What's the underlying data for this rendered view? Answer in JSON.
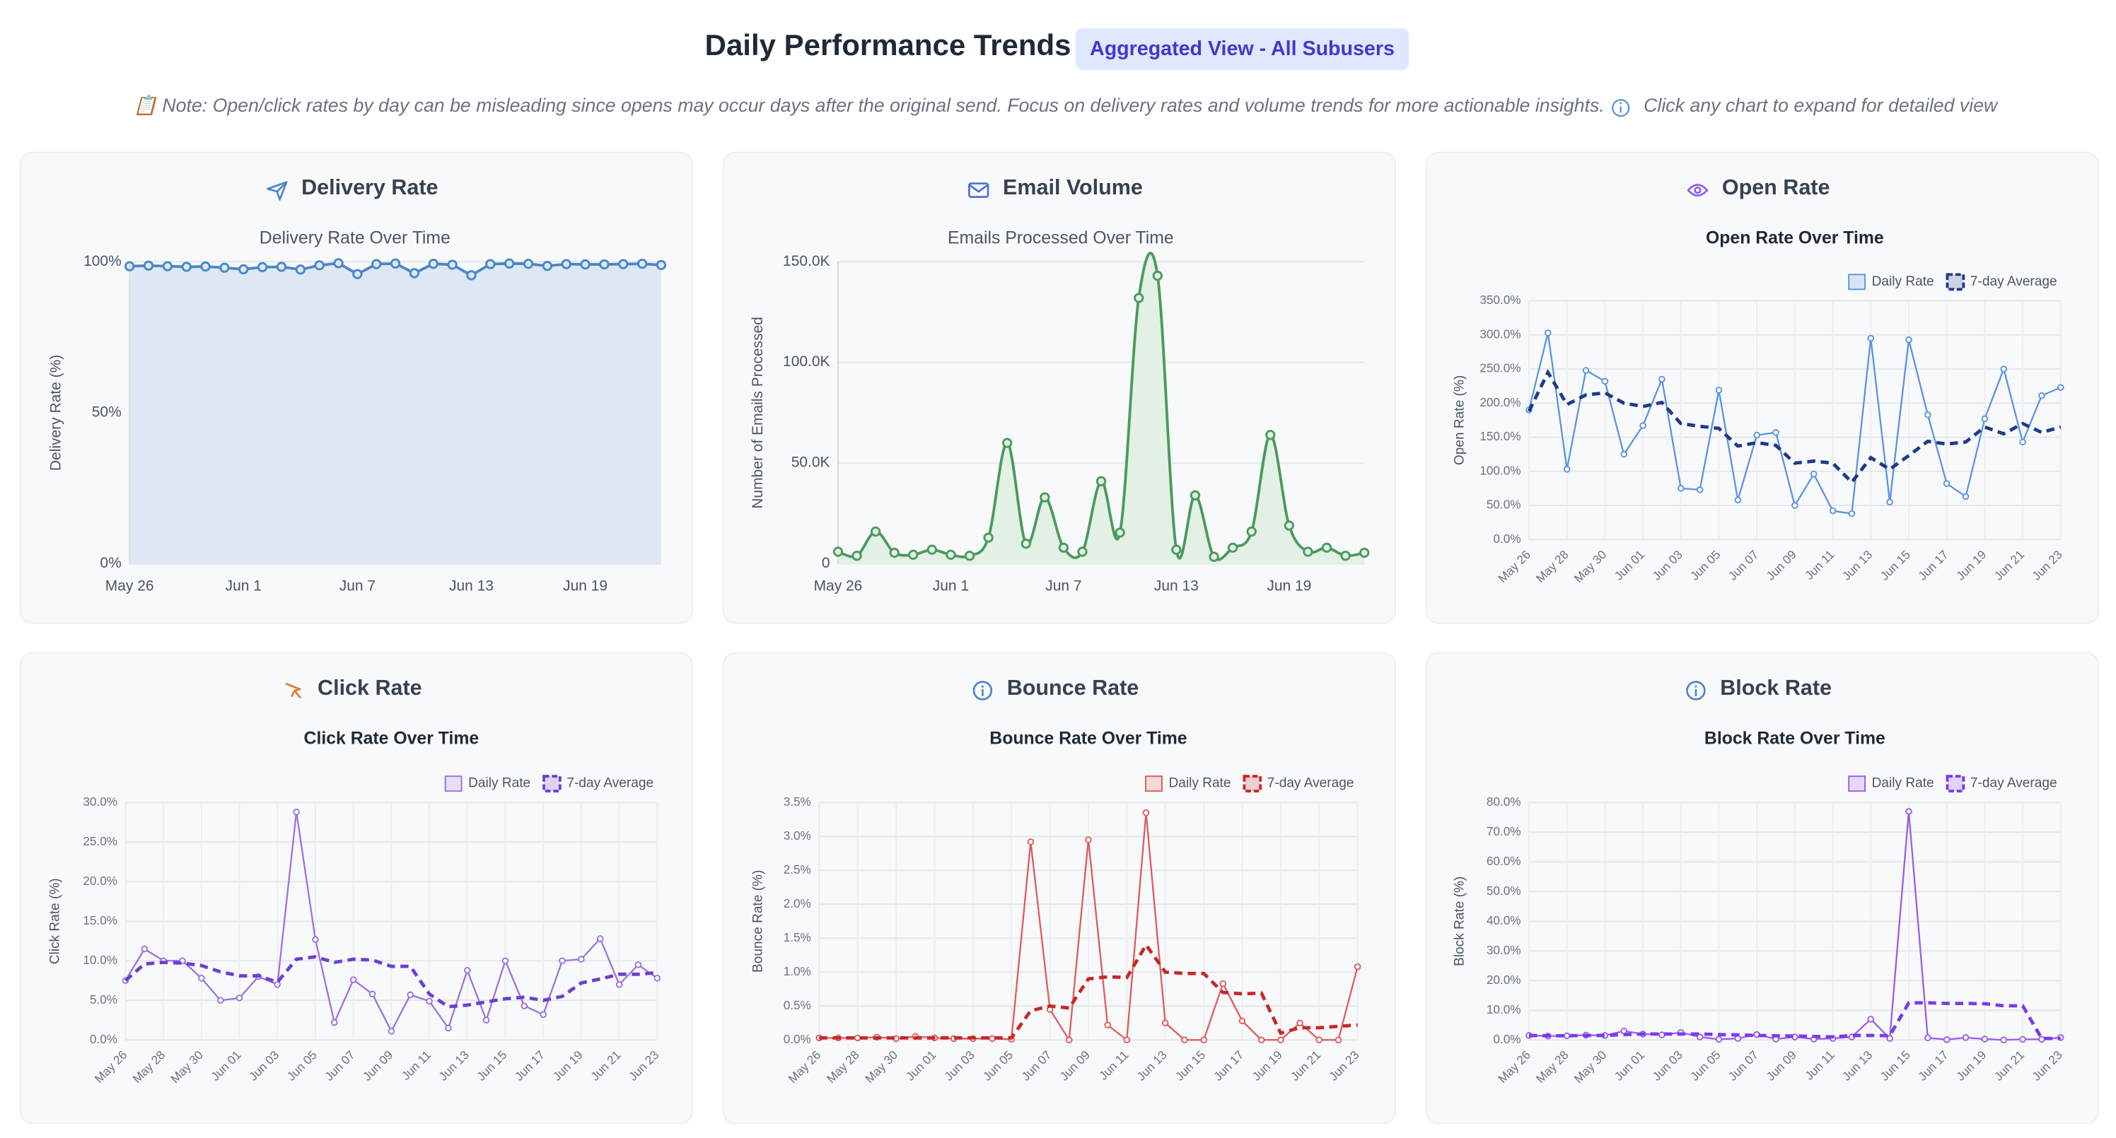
{
  "header": {
    "title": "Daily Performance Trends",
    "badge": "Aggregated View - All Subusers",
    "note": "📋 Note: Open/click rates by day can be misleading since opens may occur days after the original send. Focus on delivery rates and volume trends for more actionable insights.",
    "hint": "Click any chart to expand for detailed view"
  },
  "chart_data": [
    {
      "type": "area",
      "panel_title": "Delivery Rate",
      "title": "Delivery Rate Over Time",
      "ylabel": "Delivery Rate (%)",
      "categories": [
        "May 26",
        null,
        null,
        null,
        null,
        null,
        "Jun 1",
        null,
        null,
        null,
        null,
        null,
        "Jun 7",
        null,
        null,
        null,
        null,
        null,
        "Jun 13",
        null,
        null,
        null,
        null,
        null,
        "Jun 19",
        null,
        null,
        null,
        null
      ],
      "ylim": [
        0,
        100
      ],
      "yticks": [
        {
          "value": 0,
          "label": "0%"
        },
        {
          "value": 50,
          "label": "50%"
        },
        {
          "value": 100,
          "label": "100%"
        }
      ],
      "grid": true,
      "smooth": false,
      "series": [
        {
          "color": "#4a86c8",
          "fill": "#dde8f4",
          "values": [
            98.5,
            98.7,
            98.5,
            98.3,
            98.4,
            98.0,
            97.5,
            98.2,
            98.3,
            97.4,
            98.8,
            99.5,
            95.9,
            99.2,
            99.4,
            96.2,
            99.3,
            99.0,
            95.5,
            99.2,
            99.4,
            99.3,
            98.6,
            99.2,
            99.1,
            99.1,
            99.2,
            99.3,
            98.9
          ]
        }
      ]
    },
    {
      "type": "area",
      "panel_title": "Email Volume",
      "title": "Emails Processed Over Time",
      "ylabel": "Number of Emails Processed",
      "categories": [
        "May 26",
        null,
        null,
        null,
        null,
        null,
        "Jun 1",
        null,
        null,
        null,
        null,
        null,
        "Jun 7",
        null,
        null,
        null,
        null,
        null,
        "Jun 13",
        null,
        null,
        null,
        null,
        null,
        "Jun 19",
        null,
        null,
        null,
        null
      ],
      "ylim": [
        0,
        150000
      ],
      "yticks": [
        0,
        {
          "value": 50000,
          "label": "50.0K"
        },
        {
          "value": 100000,
          "label": "100.0K"
        },
        {
          "value": 150000,
          "label": "150.0K"
        }
      ],
      "grid": true,
      "smooth": true,
      "series": [
        {
          "color": "#4a9a5c",
          "fill": "#e2f0e5",
          "values": [
            6000,
            4000,
            16000,
            5500,
            4500,
            7000,
            4500,
            4000,
            13000,
            60000,
            10000,
            33000,
            8000,
            6000,
            41000,
            15500,
            132000,
            143000,
            7000,
            34000,
            3500,
            8000,
            16000,
            64000,
            19000,
            6000,
            8000,
            4000,
            5500
          ]
        }
      ]
    },
    {
      "type": "line",
      "panel_title": "Open Rate",
      "title": "Open Rate Over Time",
      "ylabel": "Open Rate (%)",
      "categories": [
        "May 26",
        null,
        "May 28",
        null,
        "May 30",
        null,
        "Jun 01",
        null,
        "Jun 03",
        null,
        "Jun 05",
        null,
        "Jun 07",
        null,
        "Jun 09",
        null,
        "Jun 11",
        null,
        "Jun 13",
        null,
        "Jun 15",
        null,
        "Jun 17",
        null,
        "Jun 19",
        null,
        "Jun 21",
        null,
        "Jun 23"
      ],
      "ylim": [
        0,
        350
      ],
      "yticks": [
        {
          "value": 0,
          "label": "0.0%"
        },
        {
          "value": 50,
          "label": "50.0%"
        },
        {
          "value": 100,
          "label": "100.0%"
        },
        {
          "value": 150,
          "label": "150.0%"
        },
        {
          "value": 200,
          "label": "200.0%"
        },
        {
          "value": 250,
          "label": "250.0%"
        },
        {
          "value": 300,
          "label": "300.0%"
        },
        {
          "value": 350,
          "label": "350.0%"
        }
      ],
      "grid": true,
      "xgrid": true,
      "legend": "top-right",
      "series": [
        {
          "name": "Daily Rate",
          "color": "#5b93e0",
          "dashed": false,
          "values": [
            190,
            303,
            103,
            248,
            232,
            125,
            167,
            235,
            75,
            73,
            219,
            58,
            153,
            157,
            50,
            96,
            42,
            38,
            295,
            55,
            293,
            183,
            82,
            63,
            177,
            250,
            143,
            211,
            223
          ]
        },
        {
          "name": "7-day Average",
          "color": "#1e3a8a",
          "dashed": true,
          "values": [
            188,
            245,
            198,
            212,
            215,
            200,
            195,
            201,
            170,
            166,
            163,
            137,
            142,
            138,
            112,
            115,
            112,
            84,
            120,
            103,
            123,
            144,
            140,
            143,
            165,
            155,
            170,
            157,
            165
          ]
        }
      ]
    },
    {
      "type": "line",
      "panel_title": "Click Rate",
      "title": "Click Rate Over Time",
      "ylabel": "Click Rate (%)",
      "categories": [
        "May 26",
        null,
        "May 28",
        null,
        "May 30",
        null,
        "Jun 01",
        null,
        "Jun 03",
        null,
        "Jun 05",
        null,
        "Jun 07",
        null,
        "Jun 09",
        null,
        "Jun 11",
        null,
        "Jun 13",
        null,
        "Jun 15",
        null,
        "Jun 17",
        null,
        "Jun 19",
        null,
        "Jun 21",
        null,
        "Jun 23"
      ],
      "ylim": [
        0,
        30
      ],
      "yticks": [
        {
          "value": 0,
          "label": "0.0%"
        },
        {
          "value": 5,
          "label": "5.0%"
        },
        {
          "value": 10,
          "label": "10.0%"
        },
        {
          "value": 15,
          "label": "15.0%"
        },
        {
          "value": 20,
          "label": "20.0%"
        },
        {
          "value": 25,
          "label": "25.0%"
        },
        {
          "value": 30,
          "label": "30.0%"
        }
      ],
      "grid": true,
      "xgrid": true,
      "legend": "top-right",
      "series": [
        {
          "name": "Daily Rate",
          "color": "#9b72e0",
          "dashed": false,
          "values": [
            7.5,
            11.5,
            10,
            10,
            7.8,
            5,
            5.3,
            8,
            7,
            28.8,
            12.7,
            2.2,
            7.6,
            5.8,
            1.1,
            5.7,
            4.9,
            1.5,
            8.8,
            2.5,
            10,
            4.3,
            3.2,
            10,
            10.2,
            12.8,
            7,
            9.5,
            7.8
          ]
        },
        {
          "name": "7-day Average",
          "color": "#6d3fd0",
          "dashed": true,
          "values": [
            7.5,
            9.6,
            9.8,
            9.7,
            9.4,
            8.6,
            8.1,
            8.1,
            7.3,
            10.2,
            10.5,
            9.8,
            10.2,
            10.1,
            9.3,
            9.3,
            5.8,
            4.2,
            4.4,
            4.8,
            5.2,
            5.4,
            5,
            5.5,
            7.2,
            7.7,
            8.3,
            8.3,
            8.5
          ]
        }
      ]
    },
    {
      "type": "line",
      "panel_title": "Bounce Rate",
      "title": "Bounce Rate Over Time",
      "ylabel": "Bounce Rate (%)",
      "categories": [
        "May 26",
        null,
        "May 28",
        null,
        "May 30",
        null,
        "Jun 01",
        null,
        "Jun 03",
        null,
        "Jun 05",
        null,
        "Jun 07",
        null,
        "Jun 09",
        null,
        "Jun 11",
        null,
        "Jun 13",
        null,
        "Jun 15",
        null,
        "Jun 17",
        null,
        "Jun 19",
        null,
        "Jun 21",
        null,
        "Jun 23"
      ],
      "ylim": [
        0,
        3.5
      ],
      "yticks": [
        {
          "value": 0,
          "label": "0.0%"
        },
        {
          "value": 0.5,
          "label": "0.5%"
        },
        {
          "value": 1,
          "label": "1.0%"
        },
        {
          "value": 1.5,
          "label": "1.5%"
        },
        {
          "value": 2,
          "label": "2.0%"
        },
        {
          "value": 2.5,
          "label": "2.5%"
        },
        {
          "value": 3,
          "label": "3.0%"
        },
        {
          "value": 3.5,
          "label": "3.5%"
        }
      ],
      "grid": true,
      "xgrid": true,
      "legend": "top-right",
      "series": [
        {
          "name": "Daily Rate",
          "color": "#e05a5a",
          "dashed": false,
          "values": [
            0.03,
            0.03,
            0.03,
            0.04,
            0.02,
            0.05,
            0.03,
            0.02,
            0.02,
            0.02,
            0.01,
            2.92,
            0.45,
            0,
            2.95,
            0.22,
            0,
            3.35,
            0.25,
            0,
            0,
            0.83,
            0.28,
            0,
            0,
            0.25,
            0,
            0,
            1.08
          ]
        },
        {
          "name": "7-day Average",
          "color": "#c82828",
          "dashed": true,
          "values": [
            0.03,
            0.03,
            0.03,
            0.03,
            0.03,
            0.03,
            0.03,
            0.03,
            0.03,
            0.03,
            0.03,
            0.43,
            0.5,
            0.47,
            0.9,
            0.93,
            0.92,
            1.4,
            1.0,
            0.98,
            0.98,
            0.7,
            0.68,
            0.69,
            0.1,
            0.18,
            0.18,
            0.2,
            0.22
          ]
        }
      ]
    },
    {
      "type": "line",
      "panel_title": "Block Rate",
      "title": "Block Rate Over Time",
      "ylabel": "Block Rate (%)",
      "categories": [
        "May 26",
        null,
        "May 28",
        null,
        "May 30",
        null,
        "Jun 01",
        null,
        "Jun 03",
        null,
        "Jun 05",
        null,
        "Jun 07",
        null,
        "Jun 09",
        null,
        "Jun 11",
        null,
        "Jun 13",
        null,
        "Jun 15",
        null,
        "Jun 17",
        null,
        "Jun 19",
        null,
        "Jun 21",
        null,
        "Jun 23"
      ],
      "ylim": [
        0,
        80
      ],
      "yticks": [
        {
          "value": 0,
          "label": "0.0%"
        },
        {
          "value": 10,
          "label": "10.0%"
        },
        {
          "value": 20,
          "label": "20.0%"
        },
        {
          "value": 30,
          "label": "30.0%"
        },
        {
          "value": 40,
          "label": "40.0%"
        },
        {
          "value": 50,
          "label": "50.0%"
        },
        {
          "value": 60,
          "label": "60.0%"
        },
        {
          "value": 70,
          "label": "70.0%"
        },
        {
          "value": 80,
          "label": "80.0%"
        }
      ],
      "grid": true,
      "xgrid": true,
      "legend": "top-right",
      "series": [
        {
          "name": "Daily Rate",
          "color": "#9b5de5",
          "dashed": false,
          "values": [
            1.5,
            1.3,
            1.4,
            1.6,
            1.5,
            3,
            2,
            1.7,
            2.5,
            1,
            0.2,
            0.5,
            1.8,
            0.3,
            1,
            0.3,
            0.5,
            1,
            7,
            0.5,
            77,
            0.7,
            0.1,
            0.8,
            0.3,
            0,
            0.2,
            0.2,
            0.8
          ]
        },
        {
          "name": "7-day Average",
          "color": "#7c3aed",
          "dashed": true,
          "values": [
            1.5,
            1.4,
            1.4,
            1.5,
            1.5,
            1.8,
            2,
            2,
            2,
            2,
            1.8,
            1.7,
            1.5,
            1.4,
            1.3,
            1.2,
            1,
            1.5,
            1.5,
            1.4,
            12.5,
            12.5,
            12.3,
            12.3,
            12.2,
            11.5,
            11.5,
            0.5,
            0.5
          ]
        }
      ]
    }
  ]
}
